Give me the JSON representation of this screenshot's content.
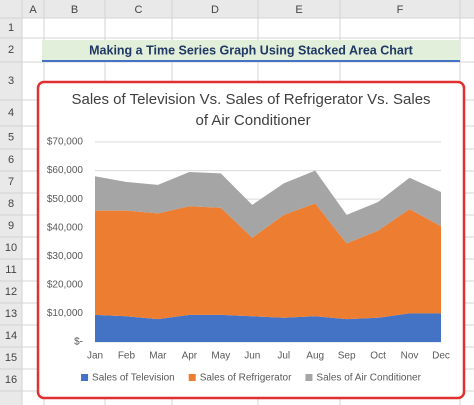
{
  "sheet": {
    "columns": [
      "A",
      "B",
      "C",
      "D",
      "E",
      "F"
    ],
    "rows": [
      "1",
      "2",
      "3",
      "4",
      "5",
      "6",
      "7",
      "8",
      "9",
      "10",
      "11",
      "12",
      "13",
      "14",
      "15",
      "16"
    ],
    "banner": "Making a Time Series Graph Using Stacked Area Chart"
  },
  "chart_data": {
    "type": "area",
    "stacked": true,
    "title": "Sales of Television Vs. Sales of Refrigerator Vs. Sales of Air Conditioner",
    "categories": [
      "Jan",
      "Feb",
      "Mar",
      "Apr",
      "May",
      "Jun",
      "Jul",
      "Aug",
      "Sep",
      "Oct",
      "Nov",
      "Dec"
    ],
    "series": [
      {
        "name": "Sales of Television",
        "color": "#4472c4",
        "values": [
          9500,
          9000,
          8000,
          9500,
          9500,
          9000,
          8500,
          9000,
          8000,
          8500,
          10000,
          10000
        ]
      },
      {
        "name": "Sales of Refrigerator",
        "color": "#ed7d31",
        "values": [
          36500,
          37000,
          37000,
          38000,
          37500,
          27500,
          36000,
          39500,
          26500,
          30500,
          36500,
          30500
        ]
      },
      {
        "name": "Sales of Air Conditioner",
        "color": "#a5a5a5",
        "values": [
          12000,
          10000,
          10000,
          12000,
          12000,
          11500,
          11000,
          11500,
          10000,
          10000,
          11000,
          12000
        ]
      }
    ],
    "ylim": [
      0,
      70000
    ],
    "yticks": [
      {
        "value": 0,
        "label": "$-"
      },
      {
        "value": 10000,
        "label": "$10,000"
      },
      {
        "value": 20000,
        "label": "$20,000"
      },
      {
        "value": 30000,
        "label": "$30,000"
      },
      {
        "value": 40000,
        "label": "$40,000"
      },
      {
        "value": 50000,
        "label": "$50,000"
      },
      {
        "value": 60000,
        "label": "$60,000"
      },
      {
        "value": 70000,
        "label": "$70,000"
      }
    ],
    "grid": true,
    "legend": "bottom"
  }
}
